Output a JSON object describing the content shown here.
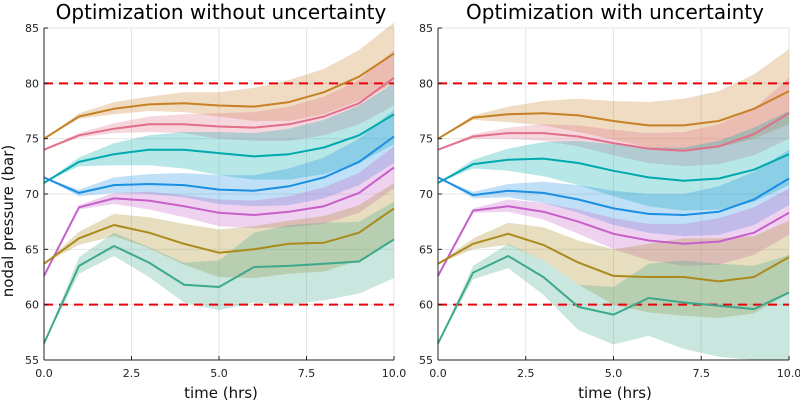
{
  "chart_data": [
    {
      "type": "line",
      "title": "Optimization without uncertainty",
      "xlabel": "time (hrs)",
      "ylabel": "nodal pressure (bar)",
      "xlim": [
        0,
        10
      ],
      "ylim": [
        55,
        85
      ],
      "xticks": [
        "0.0",
        "2.5",
        "5.0",
        "7.5",
        "10.0"
      ],
      "yticks": [
        "55",
        "60",
        "65",
        "70",
        "75",
        "80",
        "85"
      ],
      "grid": true,
      "x": [
        0,
        1,
        2,
        3,
        4,
        5,
        6,
        7,
        8,
        9,
        10
      ],
      "limits": [
        {
          "value": 80,
          "color": "#e8000b",
          "style": "dashed"
        },
        {
          "value": 60,
          "color": "#e8000b",
          "style": "dashed"
        }
      ],
      "series": [
        {
          "color": "#c68125",
          "values": [
            75.0,
            77.0,
            77.7,
            78.1,
            78.2,
            78.0,
            77.9,
            78.3,
            79.2,
            80.6,
            82.7
          ],
          "lower": [
            75.0,
            76.8,
            77.2,
            77.5,
            77.4,
            77.0,
            76.6,
            76.6,
            77.2,
            78.4,
            80.0
          ],
          "upper": [
            75.0,
            77.3,
            78.3,
            78.8,
            79.2,
            79.2,
            79.6,
            80.3,
            81.3,
            83.0,
            85.5
          ]
        },
        {
          "color": "#e26f8a",
          "values": [
            74.0,
            75.3,
            75.9,
            76.3,
            76.3,
            76.1,
            76.0,
            76.3,
            77.0,
            78.2,
            80.5
          ],
          "lower": [
            74.0,
            75.1,
            75.5,
            75.6,
            75.5,
            75.0,
            74.8,
            74.8,
            75.3,
            76.3,
            78.0
          ],
          "upper": [
            74.0,
            75.5,
            76.4,
            77.0,
            77.2,
            77.3,
            77.4,
            77.9,
            78.8,
            80.3,
            83.0
          ]
        },
        {
          "color": "#00a9ad",
          "values": [
            71.0,
            72.9,
            73.6,
            74.0,
            74.0,
            73.7,
            73.4,
            73.6,
            74.2,
            75.3,
            77.2
          ],
          "lower": [
            71.0,
            72.5,
            72.6,
            72.6,
            72.3,
            71.7,
            71.3,
            71.3,
            71.8,
            72.8,
            74.5
          ],
          "upper": [
            71.0,
            73.3,
            74.6,
            75.3,
            75.6,
            75.6,
            75.5,
            75.9,
            76.7,
            78.0,
            80.0
          ]
        },
        {
          "color": "#1a8fe3",
          "values": [
            71.5,
            70.1,
            70.8,
            70.9,
            70.8,
            70.4,
            70.3,
            70.7,
            71.5,
            72.9,
            75.2
          ],
          "lower": [
            71.5,
            69.8,
            70.1,
            70.0,
            69.7,
            69.1,
            68.9,
            69.0,
            69.6,
            70.8,
            72.8
          ],
          "upper": [
            71.5,
            70.4,
            71.5,
            71.8,
            71.9,
            71.7,
            71.7,
            72.3,
            73.3,
            75.0,
            77.6
          ]
        },
        {
          "color": "#c65fca",
          "values": [
            62.6,
            68.8,
            69.6,
            69.4,
            68.9,
            68.3,
            68.1,
            68.4,
            68.9,
            70.1,
            72.4
          ],
          "lower": [
            62.6,
            68.6,
            69.1,
            68.6,
            67.9,
            67.1,
            66.9,
            67.0,
            67.3,
            68.3,
            70.5
          ],
          "upper": [
            62.6,
            69.0,
            70.1,
            70.2,
            69.9,
            69.5,
            69.4,
            69.8,
            70.6,
            71.9,
            74.3
          ]
        },
        {
          "color": "#aa8a1b",
          "values": [
            63.7,
            66.0,
            67.2,
            66.5,
            65.5,
            64.7,
            65.0,
            65.5,
            65.6,
            66.5,
            68.7
          ],
          "lower": [
            63.7,
            65.4,
            66.2,
            65.1,
            63.6,
            62.5,
            62.4,
            62.8,
            63.0,
            64.0,
            66.0
          ],
          "upper": [
            63.7,
            66.6,
            68.2,
            67.9,
            67.3,
            66.8,
            67.1,
            67.6,
            68.0,
            69.0,
            71.0
          ]
        },
        {
          "color": "#3da88a",
          "values": [
            56.5,
            63.5,
            65.3,
            63.8,
            61.8,
            61.6,
            63.4,
            63.5,
            63.7,
            63.9,
            65.9
          ],
          "lower": [
            56.5,
            62.8,
            64.4,
            62.5,
            60.2,
            59.5,
            60.2,
            60.0,
            60.4,
            61.0,
            62.4
          ],
          "upper": [
            56.5,
            64.3,
            66.5,
            65.2,
            63.8,
            64.0,
            66.5,
            67.2,
            67.4,
            67.5,
            69.3
          ]
        }
      ]
    },
    {
      "type": "line",
      "title": "Optimization with uncertainty",
      "xlabel": "time (hrs)",
      "xlim": [
        0,
        10
      ],
      "ylim": [
        55,
        85
      ],
      "xticks": [
        "0.0",
        "2.5",
        "5.0",
        "7.5",
        "10.0"
      ],
      "yticks": [
        "55",
        "60",
        "65",
        "70",
        "75",
        "80",
        "85"
      ],
      "grid": true,
      "x": [
        0,
        1,
        2,
        3,
        4,
        5,
        6,
        7,
        8,
        9,
        10
      ],
      "limits": [
        {
          "value": 80,
          "color": "#e8000b",
          "style": "dashed"
        },
        {
          "value": 60,
          "color": "#e8000b",
          "style": "dashed"
        }
      ],
      "series": [
        {
          "color": "#c68125",
          "values": [
            75.0,
            76.9,
            77.2,
            77.3,
            77.1,
            76.6,
            76.2,
            76.2,
            76.6,
            77.7,
            79.3
          ],
          "lower": [
            75.0,
            76.7,
            76.5,
            76.2,
            75.6,
            74.9,
            74.2,
            73.9,
            74.2,
            75.0,
            76.3
          ],
          "upper": [
            75.0,
            77.1,
            77.9,
            78.4,
            78.6,
            78.4,
            78.3,
            78.6,
            79.3,
            80.8,
            83.1
          ]
        },
        {
          "color": "#e26f8a",
          "values": [
            74.0,
            75.2,
            75.5,
            75.5,
            75.2,
            74.6,
            74.1,
            73.9,
            74.3,
            75.4,
            77.3
          ],
          "lower": [
            74.0,
            75.0,
            75.0,
            74.8,
            74.3,
            73.5,
            72.8,
            72.5,
            72.7,
            73.5,
            75.0
          ],
          "upper": [
            74.0,
            75.4,
            76.0,
            76.3,
            76.2,
            75.8,
            75.5,
            75.6,
            76.3,
            77.7,
            80.5
          ]
        },
        {
          "color": "#00a9ad",
          "values": [
            71.0,
            72.7,
            73.1,
            73.2,
            72.8,
            72.1,
            71.5,
            71.2,
            71.4,
            72.2,
            73.6
          ],
          "lower": [
            71.0,
            72.3,
            72.1,
            71.6,
            70.8,
            69.8,
            68.9,
            68.5,
            68.6,
            69.3,
            70.8
          ],
          "upper": [
            71.0,
            73.1,
            74.1,
            74.7,
            74.8,
            74.5,
            74.2,
            74.2,
            74.8,
            76.0,
            77.5
          ]
        },
        {
          "color": "#1a8fe3",
          "values": [
            71.5,
            69.9,
            70.3,
            70.1,
            69.5,
            68.7,
            68.2,
            68.1,
            68.4,
            69.5,
            71.4
          ],
          "lower": [
            71.5,
            69.6,
            69.7,
            69.2,
            68.3,
            67.2,
            66.5,
            66.2,
            66.3,
            67.2,
            69.0
          ],
          "upper": [
            71.5,
            70.2,
            70.9,
            71.1,
            70.8,
            70.3,
            70.0,
            70.0,
            70.7,
            72.0,
            74.0
          ]
        },
        {
          "color": "#c65fca",
          "values": [
            62.6,
            68.5,
            68.9,
            68.4,
            67.5,
            66.4,
            65.8,
            65.5,
            65.7,
            66.5,
            68.3
          ],
          "lower": [
            62.6,
            68.3,
            68.4,
            67.7,
            66.4,
            65.0,
            64.0,
            63.5,
            63.6,
            64.5,
            66.3
          ],
          "upper": [
            62.6,
            68.7,
            69.5,
            69.2,
            68.6,
            67.8,
            67.3,
            67.3,
            67.8,
            68.8,
            70.5
          ]
        },
        {
          "color": "#aa8a1b",
          "values": [
            63.7,
            65.5,
            66.4,
            65.4,
            63.8,
            62.6,
            62.5,
            62.5,
            62.1,
            62.5,
            64.3
          ],
          "lower": [
            63.7,
            65.0,
            65.4,
            64.0,
            61.8,
            60.0,
            59.3,
            59.0,
            58.8,
            59.2,
            61.0
          ],
          "upper": [
            63.7,
            66.0,
            67.4,
            67.0,
            65.8,
            65.0,
            65.5,
            66.0,
            66.0,
            66.2,
            67.6
          ]
        },
        {
          "color": "#3da88a",
          "values": [
            56.5,
            62.9,
            64.4,
            62.5,
            59.8,
            59.1,
            60.6,
            60.2,
            59.9,
            59.6,
            61.1
          ],
          "lower": [
            56.5,
            62.3,
            63.3,
            60.9,
            57.7,
            56.4,
            57.2,
            56.0,
            55.3,
            55.0,
            55.0
          ],
          "upper": [
            56.5,
            63.5,
            65.5,
            64.0,
            61.8,
            61.6,
            63.7,
            64.0,
            63.7,
            63.5,
            64.5
          ]
        }
      ]
    }
  ]
}
